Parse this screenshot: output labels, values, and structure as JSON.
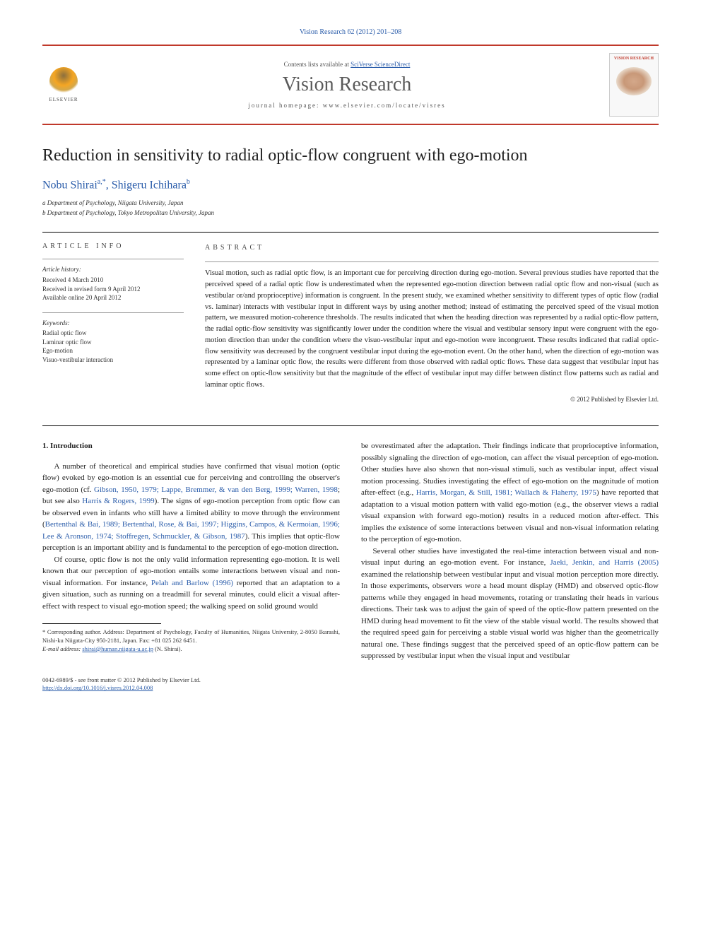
{
  "citation": "Vision Research 62 (2012) 201–208",
  "banner": {
    "contents_prefix": "Contents lists available at ",
    "contents_link": "SciVerse ScienceDirect",
    "journal": "Vision Research",
    "homepage_prefix": "journal homepage: ",
    "homepage": "www.elsevier.com/locate/visres",
    "publisher": "ELSEVIER",
    "cover_title": "VISION RESEARCH"
  },
  "article": {
    "title": "Reduction in sensitivity to radial optic-flow congruent with ego-motion",
    "authors_html": [
      "Nobu Shirai",
      "a,*",
      "Shigeru Ichihara",
      "b"
    ],
    "author1": "Nobu Shirai",
    "author1_sup": "a,*",
    "sep": ", ",
    "author2": "Shigeru Ichihara",
    "author2_sup": "b",
    "aff_a": "a Department of Psychology, Niigata University, Japan",
    "aff_b": "b Department of Psychology, Tokyo Metropolitan University, Japan"
  },
  "info": {
    "label": "ARTICLE INFO",
    "history_title": "Article history:",
    "history": [
      "Received 4 March 2010",
      "Received in revised form 9 April 2012",
      "Available online 20 April 2012"
    ],
    "keywords_title": "Keywords:",
    "keywords": [
      "Radial optic flow",
      "Laminar optic flow",
      "Ego-motion",
      "Visuo-vestibular interaction"
    ]
  },
  "abstract": {
    "label": "ABSTRACT",
    "text": "Visual motion, such as radial optic flow, is an important cue for perceiving direction during ego-motion. Several previous studies have reported that the perceived speed of a radial optic flow is underestimated when the represented ego-motion direction between radial optic flow and non-visual (such as vestibular or/and proprioceptive) information is congruent. In the present study, we examined whether sensitivity to different types of optic flow (radial vs. laminar) interacts with vestibular input in different ways by using another method; instead of estimating the perceived speed of the visual motion pattern, we measured motion-coherence thresholds. The results indicated that when the heading direction was represented by a radial optic-flow pattern, the radial optic-flow sensitivity was significantly lower under the condition where the visual and vestibular sensory input were congruent with the ego-motion direction than under the condition where the visuo-vestibular input and ego-motion were incongruent. These results indicated that radial optic-flow sensitivity was decreased by the congruent vestibular input during the ego-motion event. On the other hand, when the direction of ego-motion was represented by a laminar optic flow, the results were different from those observed with radial optic flows. These data suggest that vestibular input has some effect on optic-flow sensitivity but that the magnitude of the effect of vestibular input may differ between distinct flow patterns such as radial and laminar optic flows.",
    "copyright": "© 2012 Published by Elsevier Ltd."
  },
  "body": {
    "heading1": "1. Introduction",
    "p1a": "A number of theoretical and empirical studies have confirmed that visual motion (optic flow) evoked by ego-motion is an essential cue for perceiving and controlling the observer's ego-motion (cf. ",
    "p1_ref1": "Gibson, 1950, 1979; Lappe, Bremmer, & van den Berg, 1999; Warren, 1998",
    "p1b": "; but see also ",
    "p1_ref2": "Harris & Rogers, 1999",
    "p1c": "). The signs of ego-motion perception from optic flow can be observed even in infants who still have a limited ability to move through the environment (",
    "p1_ref3": "Bertenthal & Bai, 1989; Bertenthal, Rose, & Bai, 1997; Higgins, Campos, & Kermoian, 1996; Lee & Aronson, 1974; Stoffregen, Schmuckler, & Gibson, 1987",
    "p1d": "). This implies that optic-flow perception is an important ability and is fundamental to the perception of ego-motion direction.",
    "p2a": "Of course, optic flow is not the only valid information representing ego-motion. It is well known that our perception of ego-motion entails some interactions between visual and non-visual information. For instance, ",
    "p2_ref1": "Pelah and Barlow (1996)",
    "p2b": " reported that an adaptation to a given situation, such as running on a treadmill for several minutes, could elicit a visual after-effect with respect to visual ego-motion speed; the walking speed on solid ground would",
    "p3a": "be overestimated after the adaptation. Their findings indicate that proprioceptive information, possibly signaling the direction of ego-motion, can affect the visual perception of ego-motion. Other studies have also shown that non-visual stimuli, such as vestibular input, affect visual motion processing. Studies investigating the effect of ego-motion on the magnitude of motion after-effect (e.g., ",
    "p3_ref1": "Harris, Morgan, & Still, 1981; Wallach & Flaherty, 1975",
    "p3b": ") have reported that adaptation to a visual motion pattern with valid ego-motion (e.g., the observer views a radial visual expansion with forward ego-motion) results in a reduced motion after-effect. This implies the existence of some interactions between visual and non-visual information relating to the perception of ego-motion.",
    "p4a": "Several other studies have investigated the real-time interaction between visual and non-visual input during an ego-motion event. For instance, ",
    "p4_ref1": "Jaeki, Jenkin, and Harris (2005)",
    "p4b": " examined the relationship between vestibular input and visual motion perception more directly. In those experiments, observers wore a head mount display (HMD) and observed optic-flow patterns while they engaged in head movements, rotating or translating their heads in various directions. Their task was to adjust the gain of speed of the optic-flow pattern presented on the HMD during head movement to fit the view of the stable visual world. The results showed that the required speed gain for perceiving a stable visual world was higher than the geometrically natural one. These findings suggest that the perceived speed of an optic-flow pattern can be suppressed by vestibular input when the visual input and vestibular"
  },
  "footnotes": {
    "corr": "* Corresponding author. Address: Department of Psychology, Faculty of Humanities, Niigata University, 2-8050 Ikarashi, Nishi-ku Niigata-City 950-2181, Japan. Fax: +81 025 262 6451.",
    "email_label": "E-mail address: ",
    "email": "shirai@human.niigata-u.ac.jp",
    "email_suffix": " (N. Shirai)."
  },
  "bottom": {
    "issn": "0042-6989/$ - see front matter © 2012 Published by Elsevier Ltd.",
    "doi": "http://dx.doi.org/10.1016/j.visres.2012.04.008"
  },
  "colors": {
    "link": "#2a5caa",
    "rule": "#c0392b",
    "text": "#222222"
  }
}
